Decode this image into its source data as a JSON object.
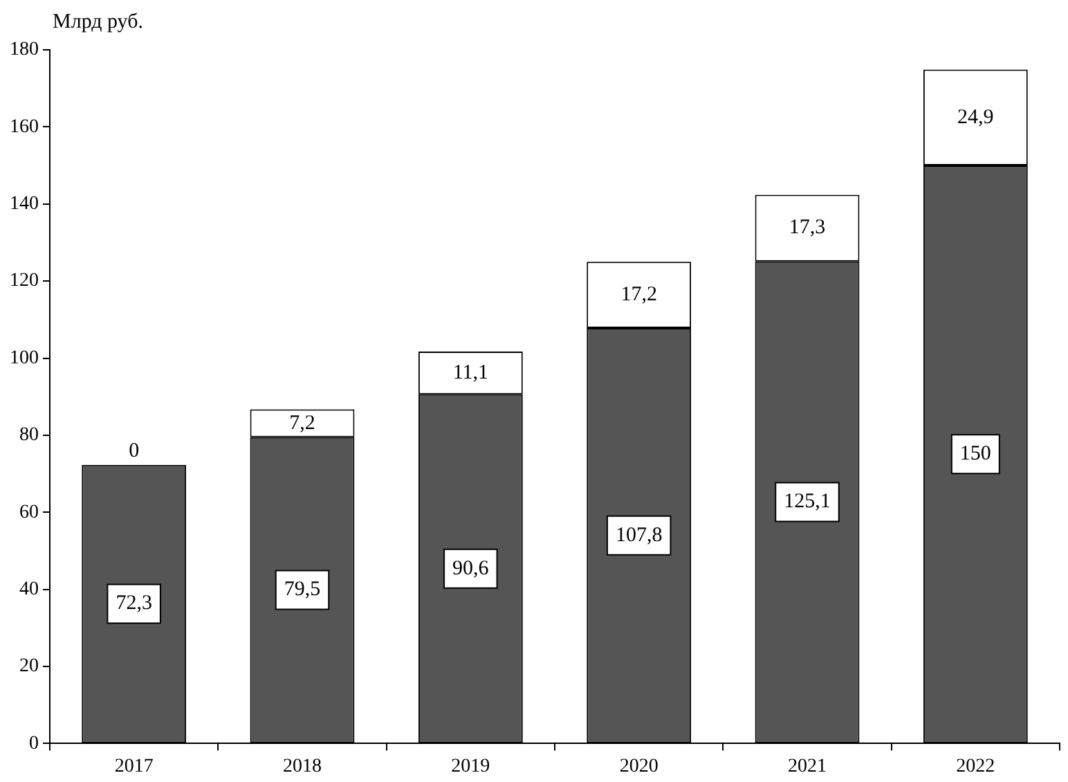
{
  "chart_data": {
    "type": "bar",
    "stacked": true,
    "ylabel": "Млрд руб.",
    "categories": [
      "2017",
      "2018",
      "2019",
      "2020",
      "2021",
      "2022"
    ],
    "series": [
      {
        "color": "#555555",
        "values": [
          72.3,
          79.5,
          90.6,
          107.8,
          125.1,
          150
        ],
        "value_labels": [
          "72,3",
          "79,5",
          "90,6",
          "107,8",
          "125,1",
          "150"
        ]
      },
      {
        "color": "#ffffff",
        "values": [
          0,
          7.2,
          11.1,
          17.2,
          17.3,
          24.9
        ],
        "value_labels": [
          "0",
          "7,2",
          "11,1",
          "17,2",
          "17,3",
          "24,9"
        ]
      }
    ],
    "ylim": [
      0,
      180
    ],
    "yticks": [
      0,
      20,
      40,
      60,
      80,
      100,
      120,
      140,
      160,
      180
    ],
    "grid": false,
    "legend": false
  }
}
